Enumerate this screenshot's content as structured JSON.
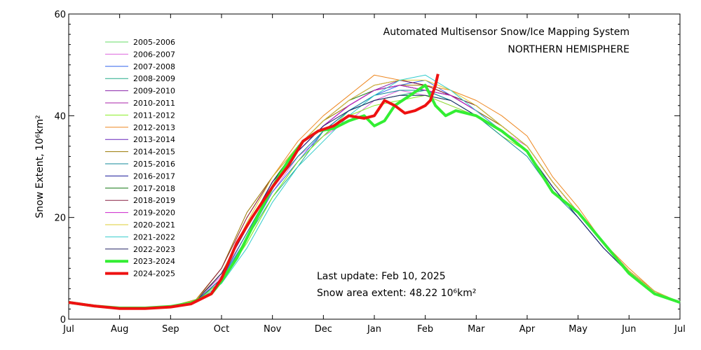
{
  "chart_data": {
    "type": "line",
    "title": "Automated  Multisensor Snow/Ice Mapping System",
    "subtitle": "NORTHERN HEMISPHERE",
    "ylabel": "Snow Extent, 10⁶km²",
    "xlabel": "",
    "ylim": [
      0,
      60
    ],
    "xlim": [
      0,
      12
    ],
    "x_tick_labels": [
      "Jul",
      "Aug",
      "Sep",
      "Oct",
      "Nov",
      "Dec",
      "Jan",
      "Feb",
      "Mar",
      "Apr",
      "May",
      "Jun",
      "Jul"
    ],
    "y_ticks": [
      0,
      20,
      40,
      60
    ],
    "y_tick_labels": [
      "0",
      "20",
      "40",
      "60"
    ],
    "grid": false,
    "legend_position": "left",
    "annotations": {
      "last_update": "Last update: Feb 10, 2025",
      "snow_area_label": "Snow area extent: 48.22 10⁶km²"
    },
    "series": [
      {
        "name": "2005-2006",
        "color": "#66dd66",
        "x": [
          0,
          1,
          2,
          2.5,
          3,
          3.5,
          4,
          4.5,
          5,
          5.5,
          6,
          6.5,
          7,
          7.5,
          8,
          8.5,
          9,
          9.5,
          10,
          10.5,
          11,
          11.5,
          12
        ],
        "y": [
          3.2,
          2.1,
          2.4,
          3.6,
          7.5,
          15,
          24,
          31,
          36,
          41,
          43,
          44,
          44,
          43,
          40,
          37,
          33,
          26,
          20,
          14,
          9,
          5,
          3.2
        ]
      },
      {
        "name": "2006-2007",
        "color": "#dd66dd",
        "x": [
          0,
          1,
          2,
          2.5,
          3,
          3.5,
          4,
          4.5,
          5,
          5.5,
          6,
          6.5,
          7,
          7.5,
          8,
          8.5,
          9,
          9.5,
          10,
          10.5,
          11,
          11.5,
          12
        ],
        "y": [
          3.3,
          2.2,
          2.5,
          3.8,
          8.5,
          17,
          25,
          32,
          36,
          39,
          43,
          45,
          44,
          42,
          40,
          37,
          34,
          27,
          21,
          15,
          9.5,
          5.5,
          3.3
        ]
      },
      {
        "name": "2007-2008",
        "color": "#3366ee",
        "x": [
          0,
          1,
          2,
          2.5,
          3,
          3.5,
          4,
          4.5,
          5,
          5.5,
          6,
          6.5,
          7,
          7.5,
          8,
          8.5,
          9,
          9.5,
          10,
          10.5,
          11,
          11.5,
          12
        ],
        "y": [
          3.1,
          2.0,
          2.3,
          3.4,
          8,
          16,
          25,
          31,
          37,
          41,
          44,
          46,
          47,
          44,
          41,
          37,
          33,
          26,
          20,
          14,
          9,
          5,
          3.1
        ]
      },
      {
        "name": "2008-2009",
        "color": "#22aa88",
        "x": [
          0,
          1,
          2,
          2.5,
          3,
          3.5,
          4,
          4.5,
          5,
          5.5,
          6,
          6.5,
          7,
          7.5,
          8,
          8.5,
          9,
          9.5,
          10,
          10.5,
          11,
          11.5,
          12
        ],
        "y": [
          3.2,
          2.1,
          2.4,
          3.5,
          7.5,
          16,
          24,
          30,
          37,
          41,
          43,
          44,
          45,
          43,
          40,
          37,
          33,
          26,
          20,
          14,
          9,
          5,
          3.2
        ]
      },
      {
        "name": "2009-2010",
        "color": "#8822aa",
        "x": [
          0,
          1,
          2,
          2.5,
          3,
          3.5,
          4,
          4.5,
          5,
          5.5,
          6,
          6.5,
          7,
          7.5,
          8,
          8.5,
          9,
          9.5,
          10,
          10.5,
          11,
          11.5,
          12
        ],
        "y": [
          3.3,
          2.2,
          2.5,
          3.7,
          9,
          18,
          26,
          33,
          38,
          42,
          45,
          47,
          46,
          44,
          41,
          37,
          33,
          26,
          20,
          14,
          9,
          5,
          3.3
        ]
      },
      {
        "name": "2010-2011",
        "color": "#aa22aa",
        "x": [
          0,
          1,
          2,
          2.5,
          3,
          3.5,
          4,
          4.5,
          5,
          5.5,
          6,
          6.5,
          7,
          7.5,
          8,
          8.5,
          9,
          9.5,
          10,
          10.5,
          11,
          11.5,
          12
        ],
        "y": [
          3.2,
          2.1,
          2.4,
          3.6,
          8,
          17,
          26,
          33,
          38,
          42,
          45,
          46,
          45,
          44,
          41,
          38,
          34,
          27,
          21,
          15,
          9.5,
          5.5,
          3.2
        ]
      },
      {
        "name": "2011-2012",
        "color": "#88ee22",
        "x": [
          0,
          1,
          2,
          2.5,
          3,
          3.5,
          4,
          4.5,
          5,
          5.5,
          6,
          6.5,
          7,
          7.5,
          8,
          8.5,
          9,
          9.5,
          10,
          10.5,
          11,
          11.5,
          12
        ],
        "y": [
          3.1,
          2.0,
          2.3,
          3.4,
          7.5,
          15,
          24,
          31,
          36,
          40,
          42,
          43,
          44,
          42,
          40,
          36,
          33,
          26,
          20,
          14,
          9,
          5,
          3.1
        ]
      },
      {
        "name": "2012-2013",
        "color": "#ee8822",
        "x": [
          0,
          1,
          2,
          2.5,
          3,
          3.5,
          4,
          4.5,
          5,
          5.5,
          6,
          6.5,
          7,
          7.5,
          8,
          8.5,
          9,
          9.5,
          10,
          10.5,
          11,
          11.5,
          12
        ],
        "y": [
          3.3,
          2.2,
          2.5,
          3.9,
          10,
          20,
          28,
          35,
          40,
          44,
          48,
          47,
          46,
          45,
          43,
          40,
          36,
          28,
          22,
          15,
          10,
          5.5,
          3.3
        ]
      },
      {
        "name": "2013-2014",
        "color": "#6622bb",
        "x": [
          0,
          1,
          2,
          2.5,
          3,
          3.5,
          4,
          4.5,
          5,
          5.5,
          6,
          6.5,
          7,
          7.5,
          8,
          8.5,
          9,
          9.5,
          10,
          10.5,
          11,
          11.5,
          12
        ],
        "y": [
          3.2,
          2.1,
          2.4,
          3.7,
          9,
          18,
          27,
          34,
          39,
          43,
          46,
          47,
          46,
          44,
          42,
          38,
          34,
          27,
          21,
          15,
          9.5,
          5.5,
          3.2
        ]
      },
      {
        "name": "2014-2015",
        "color": "#997700",
        "x": [
          0,
          1,
          2,
          2.5,
          3,
          3.5,
          4,
          4.5,
          5,
          5.5,
          6,
          6.5,
          7,
          7.5,
          8,
          8.5,
          9,
          9.5,
          10,
          10.5,
          11,
          11.5,
          12
        ],
        "y": [
          3.3,
          2.2,
          2.5,
          3.8,
          10,
          21,
          28,
          34,
          39,
          42,
          45,
          46,
          46,
          44,
          41,
          38,
          34,
          27,
          21,
          15,
          9.5,
          5.5,
          3.3
        ]
      },
      {
        "name": "2015-2016",
        "color": "#118899",
        "x": [
          0,
          1,
          2,
          2.5,
          3,
          3.5,
          4,
          4.5,
          5,
          5.5,
          6,
          6.5,
          7,
          7.5,
          8,
          8.5,
          9,
          9.5,
          10,
          10.5,
          11,
          11.5,
          12
        ],
        "y": [
          3.1,
          2.0,
          2.3,
          3.5,
          8,
          17,
          26,
          32,
          37,
          41,
          44,
          45,
          45,
          43,
          40,
          36,
          32,
          25,
          20,
          14,
          9,
          5,
          3.1
        ]
      },
      {
        "name": "2016-2017",
        "color": "#1a1a99",
        "x": [
          0,
          1,
          2,
          2.5,
          3,
          3.5,
          4,
          4.5,
          5,
          5.5,
          6,
          6.5,
          7,
          7.5,
          8,
          8.5,
          9,
          9.5,
          10,
          10.5,
          11,
          11.5,
          12
        ],
        "y": [
          3.2,
          2.1,
          2.4,
          3.6,
          9,
          18,
          27,
          33,
          38,
          42,
          45,
          46,
          45,
          44,
          41,
          37,
          33,
          26,
          20,
          14,
          9,
          5,
          3.2
        ]
      },
      {
        "name": "2017-2018",
        "color": "#117711",
        "x": [
          0,
          1,
          2,
          2.5,
          3,
          3.5,
          4,
          4.5,
          5,
          5.5,
          6,
          6.5,
          7,
          7.5,
          8,
          8.5,
          9,
          9.5,
          10,
          10.5,
          11,
          11.5,
          12
        ],
        "y": [
          3.3,
          2.2,
          2.5,
          3.8,
          9,
          18,
          27,
          34,
          39,
          43,
          45,
          46,
          45,
          44,
          42,
          38,
          34,
          27,
          21,
          15,
          9.5,
          5.5,
          3.3
        ]
      },
      {
        "name": "2018-2019",
        "color": "#882244",
        "x": [
          0,
          1,
          2,
          2.5,
          3,
          3.5,
          4,
          4.5,
          5,
          5.5,
          6,
          6.5,
          7,
          7.5,
          8,
          8.5,
          9,
          9.5,
          10,
          10.5,
          11,
          11.5,
          12
        ],
        "y": [
          3.2,
          2.1,
          2.4,
          3.7,
          10,
          20,
          28,
          34,
          39,
          43,
          46,
          47,
          46,
          44,
          42,
          38,
          34,
          27,
          21,
          15,
          9.5,
          5.5,
          3.2
        ]
      },
      {
        "name": "2019-2020",
        "color": "#cc22cc",
        "x": [
          0,
          1,
          2,
          2.5,
          3,
          3.5,
          4,
          4.5,
          5,
          5.5,
          6,
          6.5,
          7,
          7.5,
          8,
          8.5,
          9,
          9.5,
          10,
          10.5,
          11,
          11.5,
          12
        ],
        "y": [
          3.2,
          2.1,
          2.4,
          3.6,
          9,
          18,
          27,
          33,
          38,
          42,
          45,
          46,
          45,
          44,
          41,
          37,
          33,
          26,
          20,
          14,
          9,
          5,
          3.2
        ]
      },
      {
        "name": "2020-2021",
        "color": "#ddcc33",
        "x": [
          0,
          1,
          2,
          2.5,
          3,
          3.5,
          4,
          4.5,
          5,
          5.5,
          6,
          6.5,
          7,
          7.5,
          8,
          8.5,
          9,
          9.5,
          10,
          10.5,
          11,
          11.5,
          12
        ],
        "y": [
          3.3,
          2.2,
          2.5,
          3.8,
          9,
          19,
          28,
          34,
          39,
          43,
          46,
          47,
          47,
          45,
          42,
          38,
          34,
          27,
          21,
          15,
          9.5,
          5.5,
          3.3
        ]
      },
      {
        "name": "2021-2022",
        "color": "#33cccc",
        "x": [
          0,
          1,
          2,
          2.5,
          3,
          3.5,
          4,
          4.5,
          5,
          5.5,
          6,
          6.5,
          7,
          7.5,
          8,
          8.5,
          9,
          9.5,
          10,
          10.5,
          11,
          11.5,
          12
        ],
        "y": [
          3.1,
          2.0,
          2.3,
          3.4,
          7,
          14,
          23,
          30,
          35,
          40,
          44,
          47,
          48,
          45,
          41,
          37,
          33,
          26,
          20,
          14,
          9,
          5,
          3.1
        ]
      },
      {
        "name": "2022-2023",
        "color": "#222266",
        "x": [
          0,
          1,
          2,
          2.5,
          3,
          3.5,
          4,
          4.5,
          5,
          5.5,
          6,
          6.5,
          7,
          7.5,
          8,
          8.5,
          9,
          9.5,
          10,
          10.5,
          11,
          11.5,
          12
        ],
        "y": [
          3.2,
          2.1,
          2.4,
          3.6,
          9,
          18,
          27,
          33,
          38,
          41,
          43,
          44,
          44,
          43,
          40,
          37,
          33,
          26,
          20,
          14,
          9,
          5,
          3.2
        ]
      },
      {
        "name": "2023-2024",
        "color": "#33ee33",
        "width": 4,
        "x": [
          0,
          0.5,
          1,
          1.5,
          2,
          2.4,
          2.8,
          3,
          3.3,
          3.6,
          4,
          4.3,
          4.6,
          4.9,
          5.2,
          5.5,
          5.8,
          6,
          6.2,
          6.4,
          6.7,
          7,
          7.2,
          7.4,
          7.6,
          8,
          8.5,
          9,
          9.5,
          10,
          10.5,
          11,
          11.5,
          12
        ],
        "y": [
          3.3,
          2.6,
          2.2,
          2.2,
          2.5,
          3.2,
          5,
          7.5,
          12,
          18,
          26,
          31,
          35,
          37,
          37.5,
          39,
          40,
          38,
          39,
          42,
          44,
          46,
          42,
          40,
          41,
          40,
          37,
          33,
          25,
          21,
          15,
          9,
          5,
          3.3
        ]
      },
      {
        "name": "2024-2025",
        "color": "#ee1111",
        "width": 4,
        "x": [
          0,
          0.5,
          1,
          1.5,
          2,
          2.4,
          2.8,
          3,
          3.3,
          3.6,
          4,
          4.3,
          4.6,
          4.9,
          5.2,
          5.5,
          5.8,
          6,
          6.2,
          6.4,
          6.6,
          6.8,
          7,
          7.1,
          7.2,
          7.25
        ],
        "y": [
          3.3,
          2.6,
          2.1,
          2.1,
          2.4,
          3,
          5,
          8,
          15,
          20,
          26,
          30,
          35,
          37,
          38,
          40,
          39.5,
          40,
          43,
          42,
          40.5,
          41,
          42,
          43,
          46,
          48.2
        ]
      }
    ]
  }
}
